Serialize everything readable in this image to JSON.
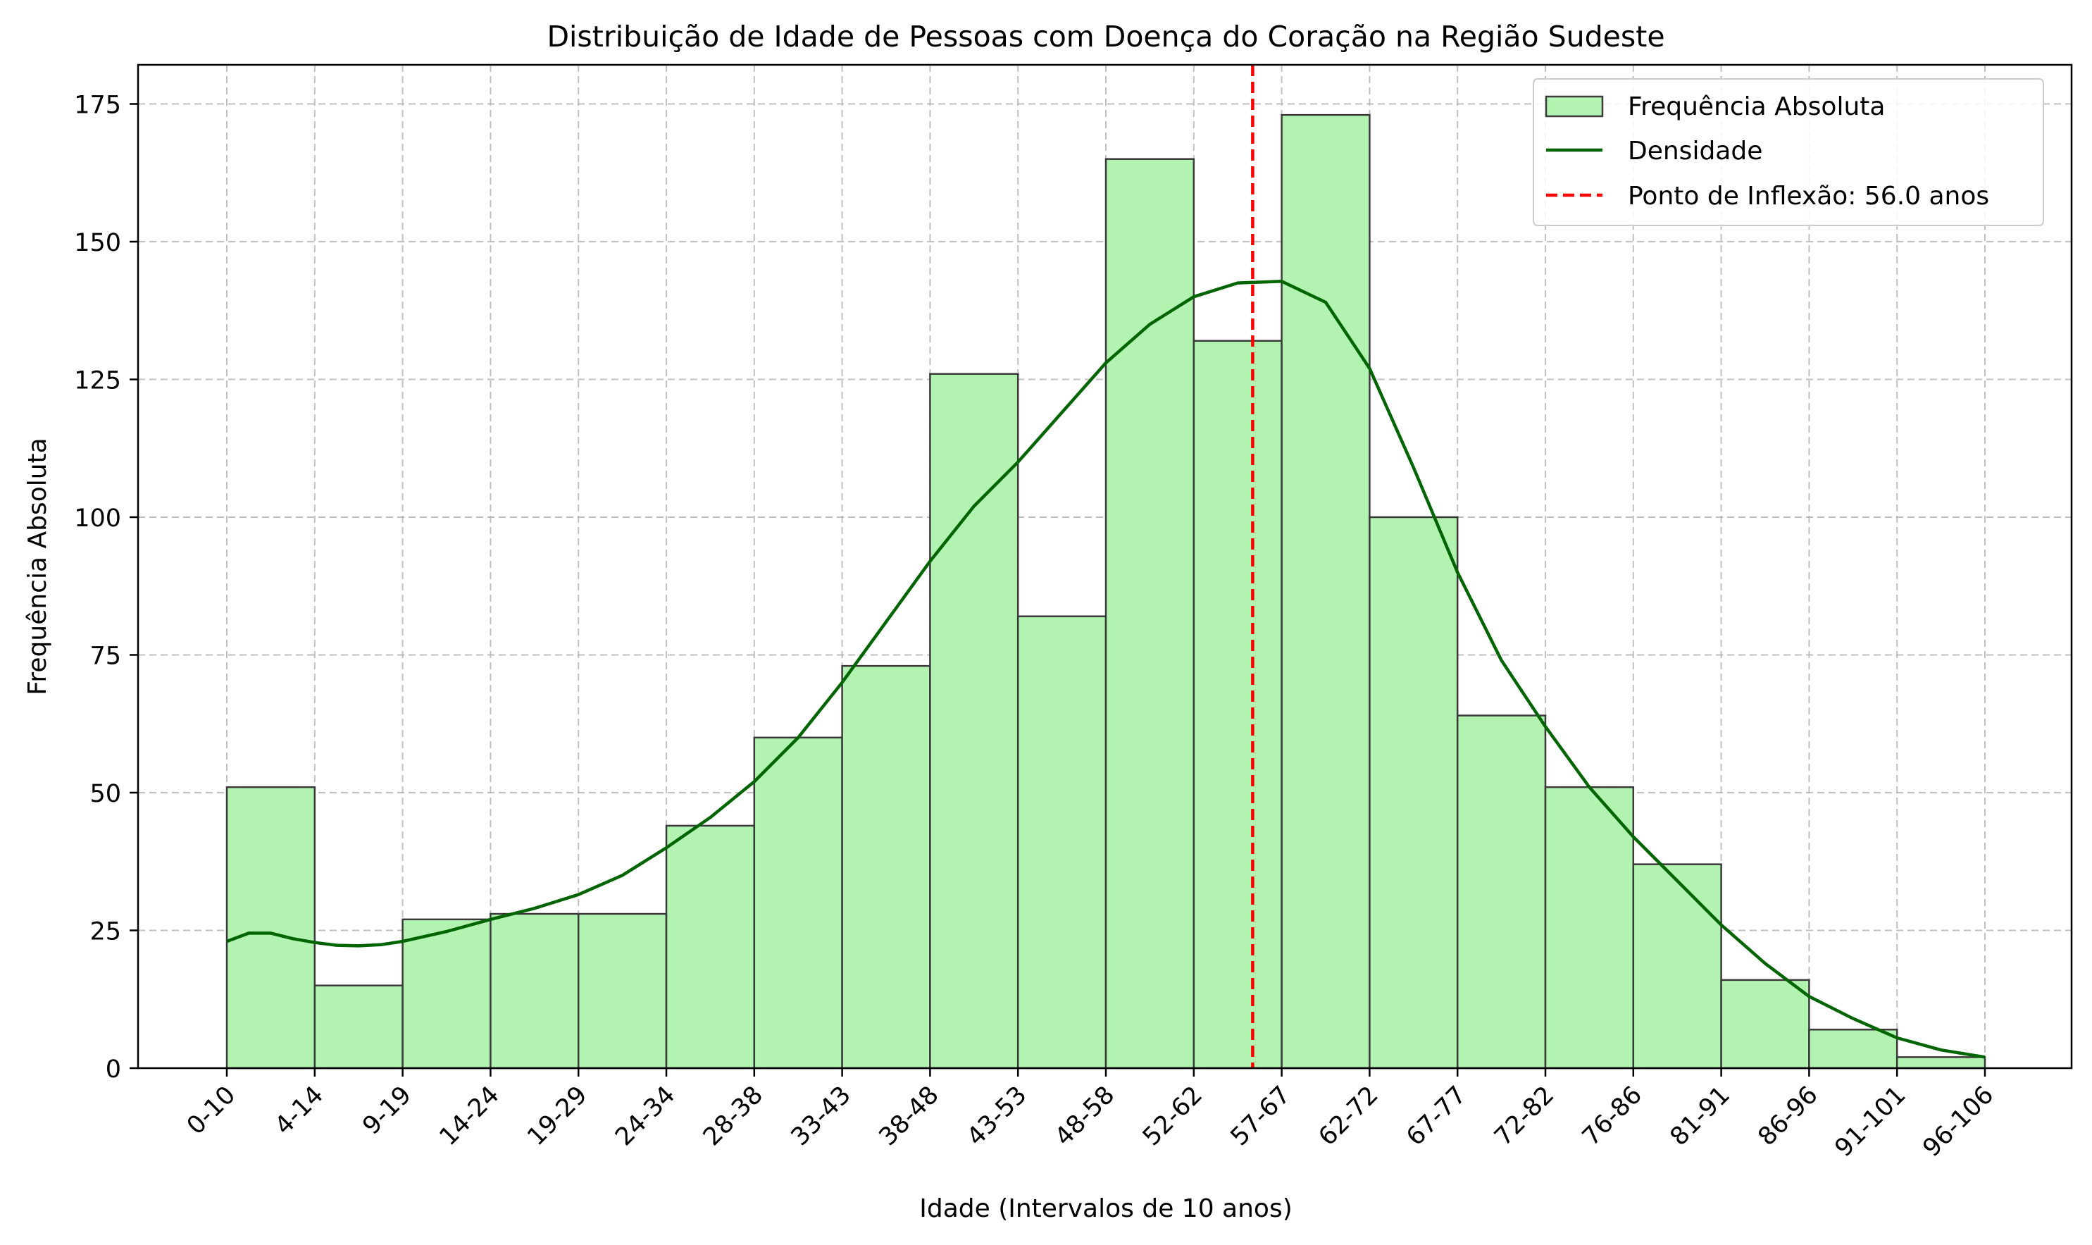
{
  "chart_data": {
    "type": "bar",
    "title": "Distribuição de Idade de Pessoas com Doença do Coração na Região Sudeste",
    "xlabel": "Idade (Intervalos de 10 anos)",
    "ylabel": "Frequência Absoluta",
    "ylim": [
      0,
      182
    ],
    "yticks": [
      0,
      25,
      50,
      75,
      100,
      125,
      150,
      175
    ],
    "grid": true,
    "legend_position": "top-right",
    "x_tick_labels": [
      "0-10",
      "4-14",
      "9-19",
      "14-24",
      "19-29",
      "24-34",
      "28-38",
      "33-43",
      "38-48",
      "43-53",
      "48-58",
      "52-62",
      "57-67",
      "62-72",
      "67-77",
      "72-82",
      "76-86",
      "81-91",
      "86-96",
      "91-101",
      "96-106"
    ],
    "bars": [
      {
        "bin": 0,
        "value": 51
      },
      {
        "bin": 1,
        "value": 15
      },
      {
        "bin": 2,
        "value": 27
      },
      {
        "bin": 3,
        "value": 28
      },
      {
        "bin": 4,
        "value": 28
      },
      {
        "bin": 5,
        "value": 44
      },
      {
        "bin": 6,
        "value": 60
      },
      {
        "bin": 7,
        "value": 73
      },
      {
        "bin": 8,
        "value": 126
      },
      {
        "bin": 9,
        "value": 82
      },
      {
        "bin": 10,
        "value": 165
      },
      {
        "bin": 11,
        "value": 132
      },
      {
        "bin": 12,
        "value": 173
      },
      {
        "bin": 13,
        "value": 100
      },
      {
        "bin": 14,
        "value": 64
      },
      {
        "bin": 15,
        "value": 51
      },
      {
        "bin": 16,
        "value": 37
      },
      {
        "bin": 17,
        "value": 16
      },
      {
        "bin": 18,
        "value": 7
      },
      {
        "bin": 19,
        "value": 2
      }
    ],
    "series": [
      {
        "name": "Frequência Absoluta",
        "kind": "bar",
        "color": "#b2f3b2",
        "edge_color": "#3a3a3a"
      },
      {
        "name": "Densidade",
        "kind": "line",
        "color": "#006400",
        "points": [
          [
            0,
            23
          ],
          [
            0.25,
            24.5
          ],
          [
            0.5,
            24.5
          ],
          [
            0.75,
            23.5
          ],
          [
            1,
            22.8
          ],
          [
            1.25,
            22.3
          ],
          [
            1.5,
            22.2
          ],
          [
            1.75,
            22.4
          ],
          [
            2,
            23
          ],
          [
            2.5,
            24.8
          ],
          [
            3,
            27
          ],
          [
            3.5,
            29
          ],
          [
            4,
            31.5
          ],
          [
            4.5,
            35
          ],
          [
            5,
            40
          ],
          [
            5.5,
            45.5
          ],
          [
            6,
            52
          ],
          [
            6.5,
            60
          ],
          [
            7,
            70
          ],
          [
            7.5,
            81
          ],
          [
            8,
            92
          ],
          [
            8.5,
            102
          ],
          [
            9,
            110
          ],
          [
            9.5,
            119
          ],
          [
            10,
            128
          ],
          [
            10.5,
            135
          ],
          [
            11,
            140
          ],
          [
            11.5,
            142.5
          ],
          [
            12,
            142.8
          ],
          [
            12.5,
            139
          ],
          [
            13,
            127
          ],
          [
            13.5,
            109
          ],
          [
            14,
            90
          ],
          [
            14.5,
            74
          ],
          [
            15,
            62
          ],
          [
            15.5,
            51
          ],
          [
            16,
            42
          ],
          [
            16.5,
            34
          ],
          [
            17,
            26
          ],
          [
            17.5,
            19
          ],
          [
            18,
            13
          ],
          [
            18.5,
            9
          ],
          [
            19,
            5.5
          ],
          [
            19.5,
            3.3
          ],
          [
            20,
            2
          ]
        ]
      },
      {
        "name": "Ponto de Inflexão: 56.0 anos",
        "kind": "vline",
        "color": "#ff0000",
        "x_bin_position": 11.67
      }
    ]
  }
}
